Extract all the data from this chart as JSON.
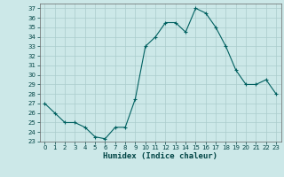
{
  "hours": [
    0,
    1,
    2,
    3,
    4,
    5,
    6,
    7,
    8,
    9,
    10,
    11,
    12,
    13,
    14,
    15,
    16,
    17,
    18,
    19,
    20,
    21,
    22,
    23
  ],
  "values": [
    27,
    26,
    25,
    25,
    24.5,
    23.5,
    23.3,
    24.5,
    24.5,
    27.5,
    33,
    34,
    35.5,
    35.5,
    34.5,
    37,
    36.5,
    35,
    33,
    30.5,
    29,
    29,
    29.5,
    28
  ],
  "line_color": "#006060",
  "marker": "+",
  "bg_color": "#cce8e8",
  "grid_color": "#aacccc",
  "xlabel": "Humidex (Indice chaleur)",
  "ylim": [
    23,
    37.5
  ],
  "yticks": [
    23,
    24,
    25,
    26,
    27,
    28,
    29,
    30,
    31,
    32,
    33,
    34,
    35,
    36,
    37
  ],
  "xticks": [
    0,
    1,
    2,
    3,
    4,
    5,
    6,
    7,
    8,
    9,
    10,
    11,
    12,
    13,
    14,
    15,
    16,
    17,
    18,
    19,
    20,
    21,
    22,
    23
  ],
  "xlim": [
    -0.5,
    23.5
  ]
}
